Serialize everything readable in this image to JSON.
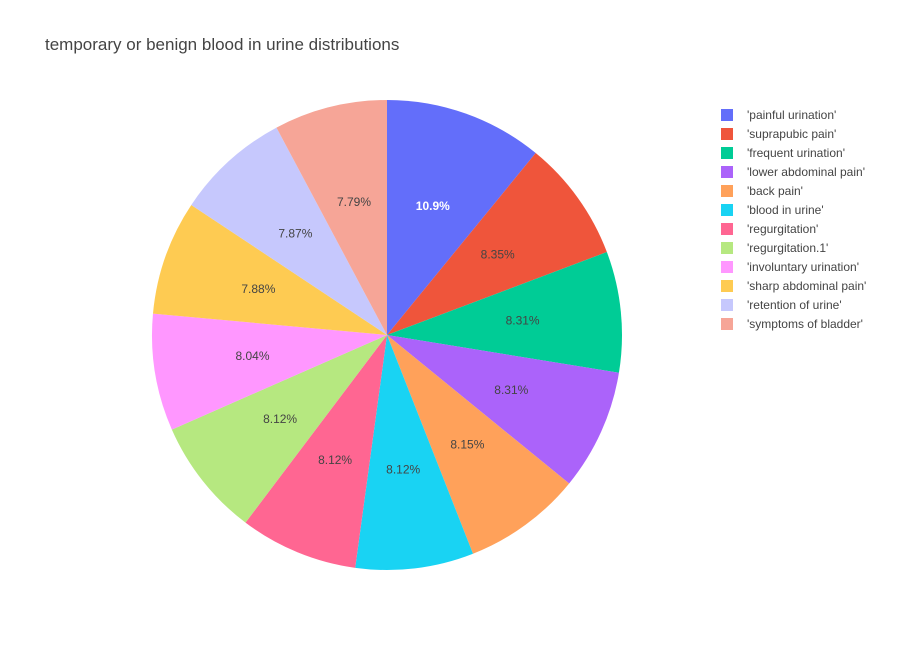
{
  "chart_data": {
    "type": "pie",
    "title": "temporary or benign blood in urine distributions",
    "sort": "descending-clockwise",
    "start_angle_deg": 0,
    "slices": [
      {
        "label": "'painful urination'",
        "value": 10.9,
        "text": "10.9%",
        "color": "#636efa",
        "text_color": "#ffffff"
      },
      {
        "label": "'suprapubic pain'",
        "value": 8.35,
        "text": "8.35%",
        "color": "#EF553B",
        "text_color": "#444444"
      },
      {
        "label": "'frequent urination'",
        "value": 8.31,
        "text": "8.31%",
        "color": "#00cc96",
        "text_color": "#444444"
      },
      {
        "label": "'lower abdominal pain'",
        "value": 8.31,
        "text": "8.31%",
        "color": "#ab63fa",
        "text_color": "#444444"
      },
      {
        "label": "'back pain'",
        "value": 8.15,
        "text": "8.15%",
        "color": "#FFA15A",
        "text_color": "#444444"
      },
      {
        "label": "'blood in urine'",
        "value": 8.12,
        "text": "8.12%",
        "color": "#19d3f3",
        "text_color": "#444444"
      },
      {
        "label": "'regurgitation'",
        "value": 8.12,
        "text": "8.12%",
        "color": "#FF6692",
        "text_color": "#444444"
      },
      {
        "label": "'regurgitation.1'",
        "value": 8.12,
        "text": "8.12%",
        "color": "#B6E880",
        "text_color": "#444444"
      },
      {
        "label": "'involuntary urination'",
        "value": 8.04,
        "text": "8.04%",
        "color": "#FF97FF",
        "text_color": "#444444"
      },
      {
        "label": "'sharp abdominal pain'",
        "value": 7.88,
        "text": "7.88%",
        "color": "#FECB52",
        "text_color": "#444444"
      },
      {
        "label": "'retention of urine'",
        "value": 7.87,
        "text": "7.87%",
        "color": "#c6c8fd",
        "text_color": "#444444"
      },
      {
        "label": "'symptoms of bladder'",
        "value": 7.79,
        "text": "7.79%",
        "color": "#F6A597",
        "text_color": "#444444"
      }
    ],
    "legend_position": "top-right"
  }
}
